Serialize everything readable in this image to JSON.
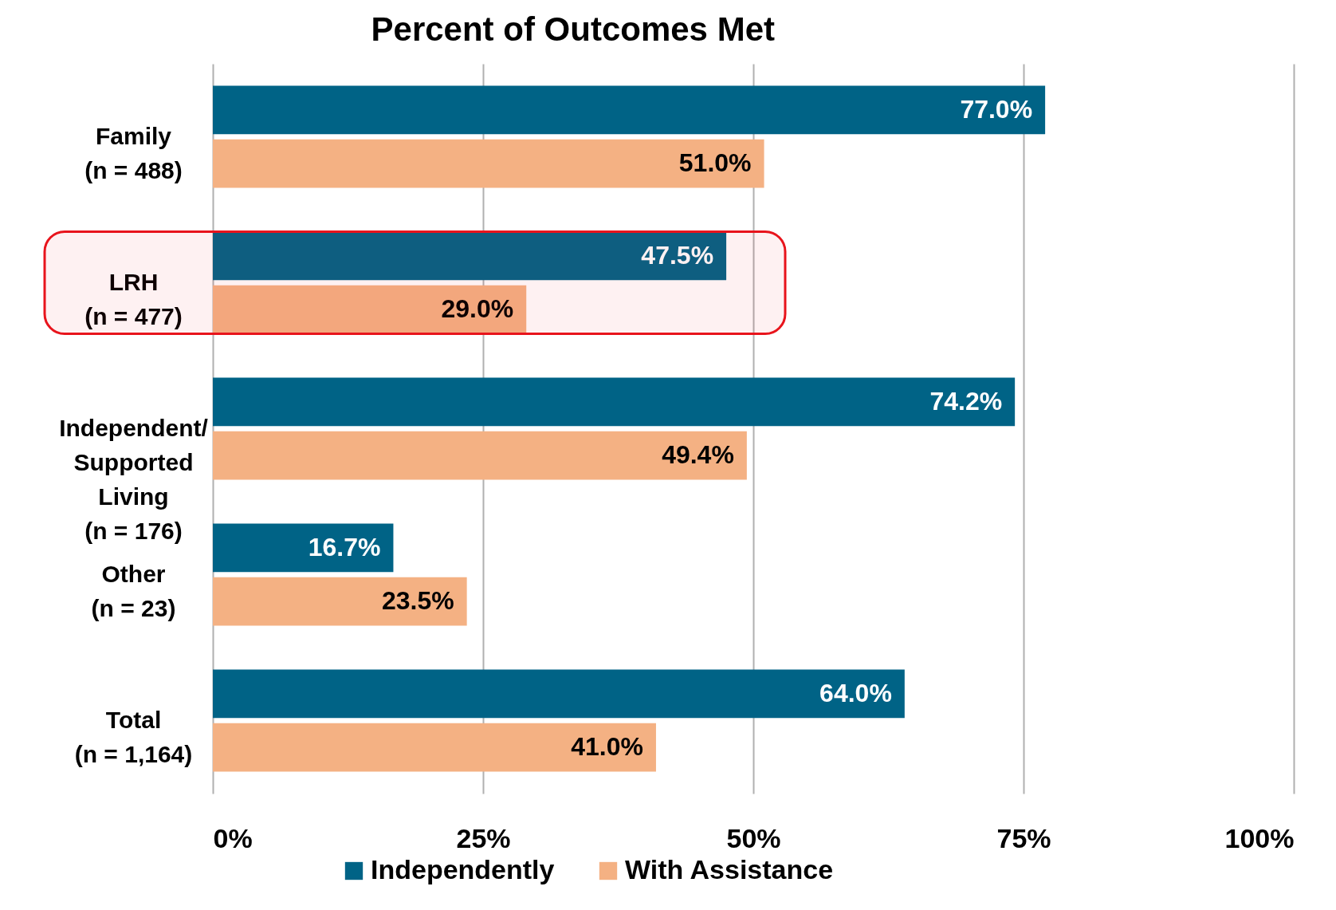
{
  "chart_data": {
    "type": "bar",
    "orientation": "horizontal",
    "title": "Percent of Outcomes Met",
    "categories": [
      "Family\n(n = 488)",
      "LRH\n(n = 477)",
      "Independent/\nSupported\nLiving\n(n = 176)",
      "Other\n(n = 23)",
      "Total\n(n = 1,164)"
    ],
    "series": [
      {
        "name": "Independently",
        "color": "#006386",
        "values": [
          77.0,
          47.5,
          74.2,
          16.7,
          64.0
        ],
        "value_labels": [
          "77.0%",
          "47.5%",
          "74.2%",
          "16.7%",
          "64.0%"
        ]
      },
      {
        "name": "With Assistance",
        "color": "#f4b183",
        "values": [
          51.0,
          29.0,
          49.4,
          23.5,
          41.0
        ],
        "value_labels": [
          "51.0%",
          "29.0%",
          "49.4%",
          "23.5%",
          "41.0%"
        ]
      }
    ],
    "xlim": [
      0,
      100
    ],
    "xticks": [
      {
        "value": 0,
        "label": "0%"
      },
      {
        "value": 25,
        "label": "25%"
      },
      {
        "value": 50,
        "label": "50%"
      },
      {
        "value": 75,
        "label": "75%"
      },
      {
        "value": 100,
        "label": "100%"
      }
    ],
    "bands": [
      {
        "axis": "y",
        "from": "LRH\n(n = 477)",
        "to": "LRH\n(n = 477)",
        "color": "#e8141c"
      }
    ],
    "grid": "x",
    "legend": "bottom"
  }
}
